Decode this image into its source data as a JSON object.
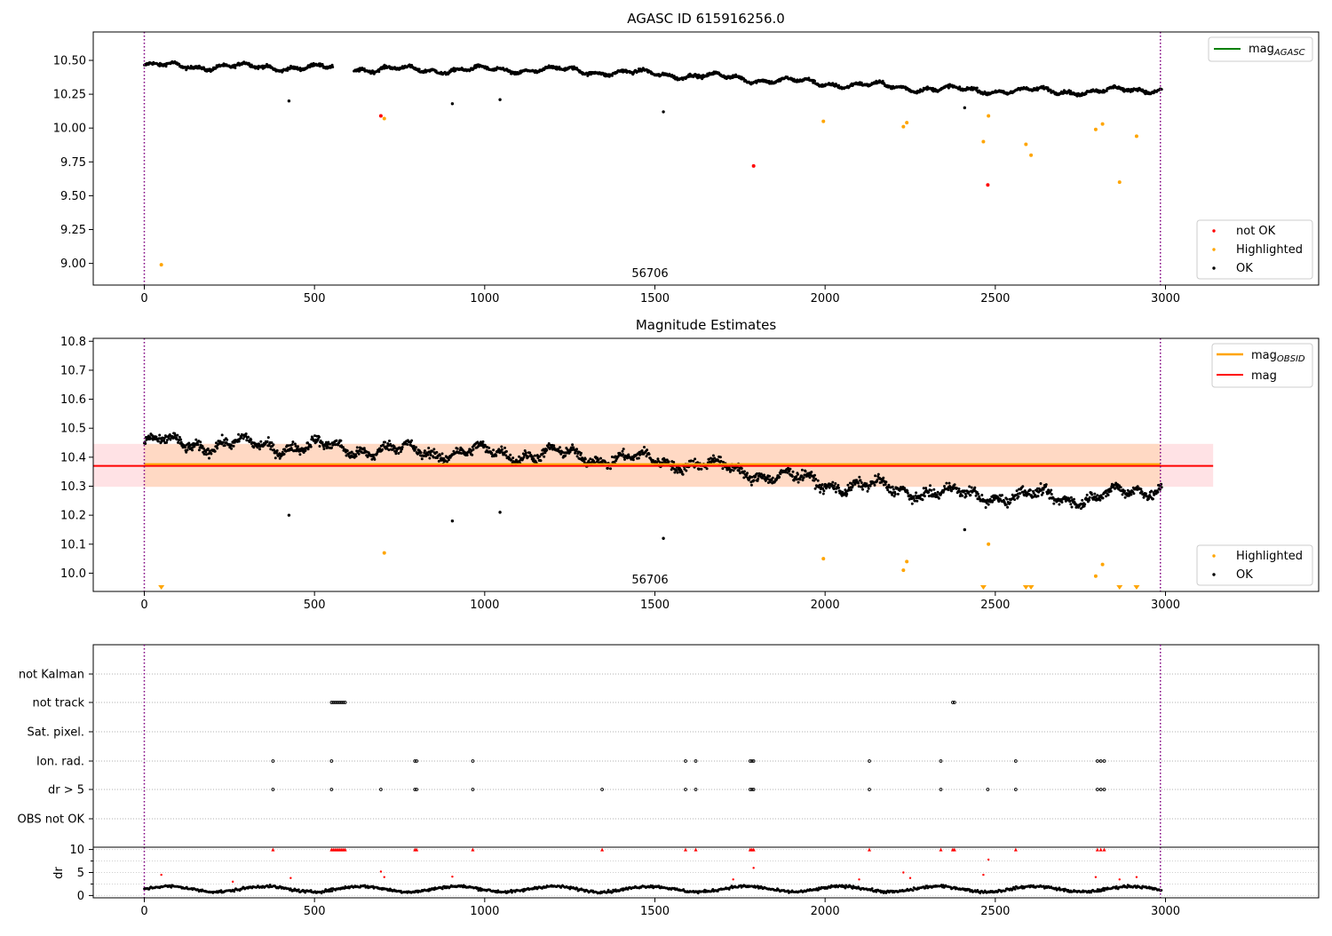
{
  "panels": [
    {
      "title": "AGASC ID 615916256.0",
      "yticks": [
        "10.50",
        "10.25",
        "10.00",
        "9.75",
        "9.50",
        "9.25",
        "9.00"
      ],
      "xticks": [
        "0",
        "500",
        "1000",
        "1500",
        "2000",
        "2500",
        "3000"
      ],
      "obsid_label": "56706",
      "legend_top": {
        "label": "mag",
        "sub": "AGASC"
      },
      "legend_bottom": [
        "not OK",
        "Highlighted",
        "OK"
      ]
    },
    {
      "title": "Magnitude Estimates",
      "yticks": [
        "10.8",
        "10.7",
        "10.6",
        "10.5",
        "10.4",
        "10.3",
        "10.2",
        "10.1",
        "10.0"
      ],
      "xticks": [
        "0",
        "500",
        "1000",
        "1500",
        "2000",
        "2500",
        "3000"
      ],
      "obsid_label": "56706",
      "legend_top": [
        {
          "label": "mag",
          "sub": "OBSID"
        },
        {
          "label": "mag"
        }
      ],
      "legend_bottom": [
        "Highlighted",
        "OK"
      ]
    },
    {
      "flag_labels": [
        "not Kalman",
        "not track",
        "Sat. pixel.",
        "Ion. rad.",
        "dr > 5",
        "OBS not OK"
      ],
      "dr_yticks": [
        "10",
        "5",
        "0"
      ],
      "dr_ylabel": "dr",
      "xticks": [
        "0",
        "500",
        "1000",
        "1500",
        "2000",
        "2500",
        "3000"
      ]
    }
  ],
  "chart_data": [
    {
      "type": "scatter",
      "title": "AGASC ID 615916256.0",
      "xlim": [
        -150,
        3450
      ],
      "ylim": [
        8.84,
        10.71
      ],
      "series": [
        {
          "name": "mag_AGASC",
          "kind": "line",
          "color": "#008000",
          "y": 10.5
        },
        {
          "name": "OK",
          "color": "#000000",
          "trend": [
            [
              0,
              10.46
            ],
            [
              400,
              10.45
            ],
            [
              800,
              10.43
            ],
            [
              1200,
              10.43
            ],
            [
              1600,
              10.39
            ],
            [
              2000,
              10.33
            ],
            [
              2400,
              10.28
            ],
            [
              2800,
              10.27
            ],
            [
              2990,
              10.29
            ]
          ],
          "scatter": 0.02,
          "gaps": [
            [
              555,
              615
            ]
          ],
          "outliers": [
            [
              425,
              10.2
            ],
            [
              905,
              10.18
            ],
            [
              1045,
              10.21
            ],
            [
              1525,
              10.12
            ],
            [
              2410,
              10.15
            ]
          ]
        },
        {
          "name": "Highlighted",
          "color": "#ffa500",
          "points": [
            [
              50,
              8.99
            ],
            [
              705,
              10.07
            ],
            [
              1995,
              10.05
            ],
            [
              2230,
              10.01
            ],
            [
              2240,
              10.04
            ],
            [
              2465,
              9.9
            ],
            [
              2480,
              10.09
            ],
            [
              2590,
              9.88
            ],
            [
              2605,
              9.8
            ],
            [
              2795,
              9.99
            ],
            [
              2815,
              10.03
            ],
            [
              2865,
              9.6
            ],
            [
              2915,
              9.94
            ]
          ]
        },
        {
          "name": "not OK",
          "color": "#ff0000",
          "points": [
            [
              695,
              10.09
            ],
            [
              1790,
              9.72
            ],
            [
              2478,
              9.58
            ]
          ]
        }
      ],
      "vlines": [
        0,
        2985
      ]
    },
    {
      "type": "scatter",
      "title": "Magnitude Estimates",
      "xlim": [
        -150,
        3450
      ],
      "ylim": [
        9.937,
        10.81
      ],
      "mag_obsid": {
        "color": "#ffa500",
        "x": [
          0,
          2985
        ],
        "y": 10.37,
        "band": [
          10.298,
          10.446
        ],
        "band_color": "#ffd8c0"
      },
      "mag": {
        "color": "#ff0000",
        "x": [
          -150,
          3140
        ],
        "y": 10.37,
        "band": [
          10.298,
          10.446
        ],
        "band_color": "#ffdde0"
      },
      "series": [
        {
          "name": "OK",
          "color": "#000000",
          "trend": [
            [
              0,
              10.45
            ],
            [
              400,
              10.44
            ],
            [
              800,
              10.42
            ],
            [
              1200,
              10.41
            ],
            [
              1600,
              10.38
            ],
            [
              2000,
              10.31
            ],
            [
              2400,
              10.27
            ],
            [
              2800,
              10.26
            ],
            [
              2990,
              10.3
            ]
          ],
          "scatter": 0.028,
          "gaps": [],
          "outliers": [
            [
              425,
              10.2
            ],
            [
              905,
              10.18
            ],
            [
              1045,
              10.21
            ],
            [
              1525,
              10.12
            ],
            [
              2410,
              10.15
            ]
          ]
        },
        {
          "name": "Highlighted",
          "color": "#ffa500",
          "points": [
            [
              705,
              10.07
            ],
            [
              1995,
              10.05
            ],
            [
              2230,
              10.01
            ],
            [
              2240,
              10.04
            ],
            [
              2480,
              10.1
            ],
            [
              2795,
              9.99
            ],
            [
              2815,
              10.03
            ]
          ],
          "triangles": [
            50,
            2465,
            2590,
            2605,
            2865,
            2915
          ]
        }
      ],
      "vlines": [
        0,
        2985
      ]
    },
    {
      "type": "scatter",
      "xlim": [
        -150,
        3450
      ],
      "categories": [
        "not Kalman",
        "not track",
        "Sat. pixel.",
        "Ion. rad.",
        "dr > 5",
        "OBS not OK"
      ],
      "flags": {
        "not Kalman": [],
        "not track": [
          550,
          555,
          560,
          565,
          570,
          575,
          580,
          585,
          590,
          2375,
          2380
        ],
        "Sat. pixel.": [],
        "Ion. rad.": [
          378,
          550,
          795,
          800,
          965,
          1590,
          1620,
          1780,
          1785,
          1790,
          2130,
          2340,
          2560,
          2800,
          2810,
          2820
        ],
        "dr > 5": [
          378,
          550,
          695,
          795,
          800,
          965,
          1345,
          1590,
          1620,
          1780,
          1785,
          1790,
          2130,
          2340,
          2478,
          2560,
          2800,
          2810,
          2820
        ],
        "OBS not OK": []
      },
      "dr": {
        "ylim": [
          -0.5,
          10.5
        ],
        "typical": 1.4,
        "clip": 10,
        "red_points": [
          [
            50,
            4.5
          ],
          [
            260,
            3
          ],
          [
            430,
            3.8
          ],
          [
            695,
            5.2
          ],
          [
            705,
            4
          ],
          [
            905,
            4.1
          ],
          [
            1730,
            3.5
          ],
          [
            1790,
            6
          ],
          [
            2100,
            3.5
          ],
          [
            2230,
            5
          ],
          [
            2250,
            3.8
          ],
          [
            2465,
            4.5
          ],
          [
            2480,
            7.8
          ],
          [
            2795,
            4
          ],
          [
            2865,
            3.5
          ],
          [
            2915,
            4
          ]
        ],
        "clipped_x": [
          378,
          550,
          555,
          560,
          565,
          570,
          575,
          580,
          585,
          590,
          795,
          800,
          965,
          1345,
          1590,
          1620,
          1780,
          1785,
          1790,
          2130,
          2340,
          2375,
          2380,
          2560,
          2800,
          2810,
          2820
        ]
      },
      "vlines": [
        0,
        2985
      ]
    }
  ]
}
